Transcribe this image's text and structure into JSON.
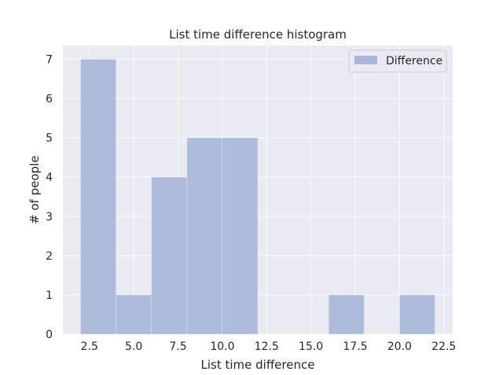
{
  "chart_data": {
    "type": "bar",
    "title": "List time difference histogram",
    "xlabel": "List time difference",
    "ylabel": "# of people",
    "xlim": [
      1.0,
      23.0
    ],
    "ylim": [
      0,
      7.35
    ],
    "xticks": [
      2.5,
      5.0,
      7.5,
      10.0,
      12.5,
      15.0,
      17.5,
      20.0,
      22.5
    ],
    "xtick_labels": [
      "2.5",
      "5.0",
      "7.5",
      "10.0",
      "12.5",
      "15.0",
      "17.5",
      "20.0",
      "22.5"
    ],
    "yticks": [
      0,
      1,
      2,
      3,
      4,
      5,
      6,
      7
    ],
    "ytick_labels": [
      "0",
      "1",
      "2",
      "3",
      "4",
      "5",
      "6",
      "7"
    ],
    "grid": true,
    "legend_position": "top-right",
    "series": [
      {
        "name": "Difference",
        "color": "#a9b8d8",
        "bins": [
          {
            "x0": 2,
            "x1": 4,
            "count": 7
          },
          {
            "x0": 4,
            "x1": 6,
            "count": 1
          },
          {
            "x0": 6,
            "x1": 8,
            "count": 4
          },
          {
            "x0": 8,
            "x1": 10,
            "count": 5
          },
          {
            "x0": 10,
            "x1": 12,
            "count": 5
          },
          {
            "x0": 12,
            "x1": 14,
            "count": 0
          },
          {
            "x0": 14,
            "x1": 16,
            "count": 0
          },
          {
            "x0": 16,
            "x1": 18,
            "count": 1
          },
          {
            "x0": 18,
            "x1": 20,
            "count": 0
          },
          {
            "x0": 20,
            "x1": 22,
            "count": 1
          }
        ]
      }
    ],
    "plot_background": "#eaeaf2",
    "grid_color": "#ffffff"
  }
}
